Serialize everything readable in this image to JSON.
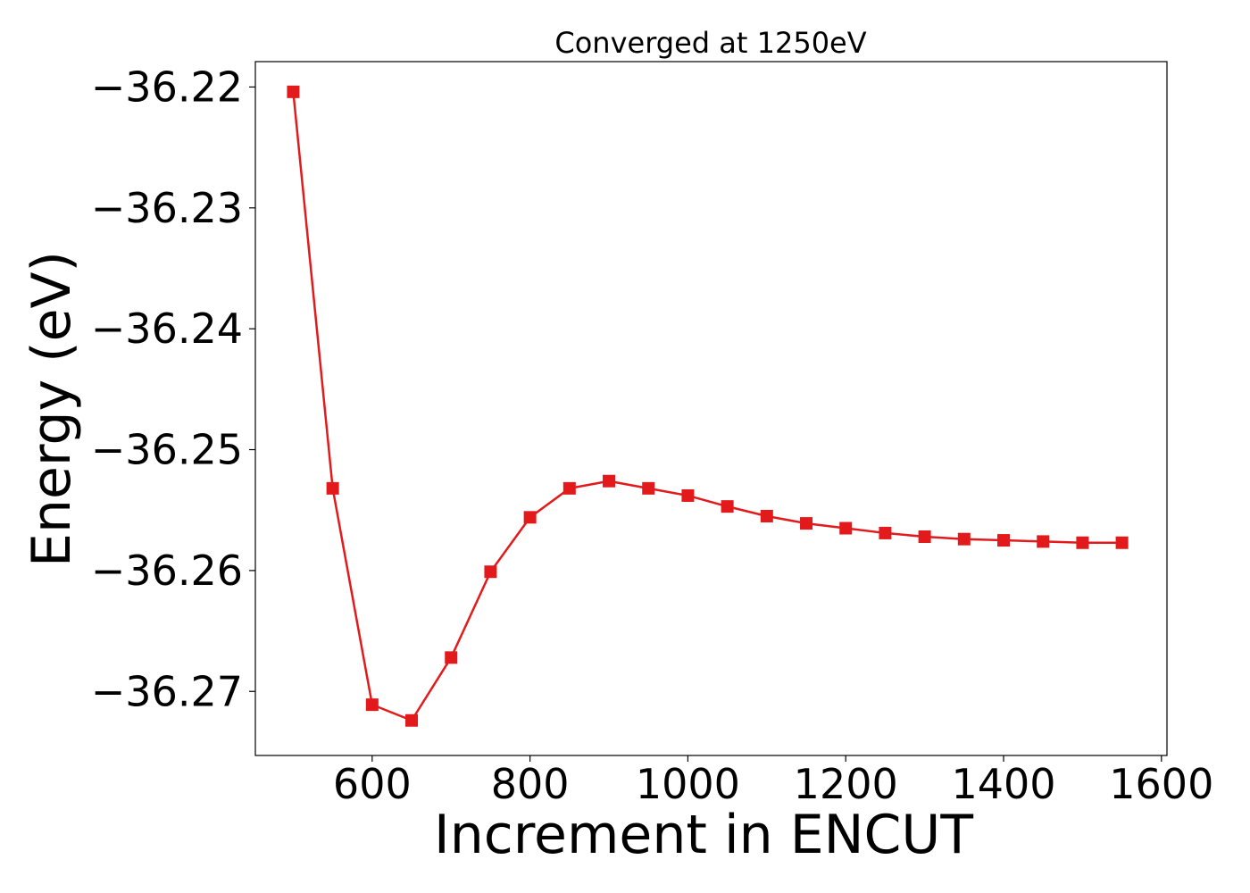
{
  "chart_data": {
    "type": "line",
    "title": "Converged at 1250eV",
    "xlabel": "Increment in ENCUT",
    "ylabel": "Energy (eV)",
    "xlim": [
      452,
      1607
    ],
    "ylim": [
      -36.2753,
      -36.2179
    ],
    "xticks": [
      600,
      800,
      1000,
      1200,
      1400,
      1600
    ],
    "xtick_labels": [
      "600",
      "800",
      "1000",
      "1200",
      "1400",
      "1600"
    ],
    "yticks": [
      -36.22,
      -36.23,
      -36.24,
      -36.25,
      -36.26,
      -36.27
    ],
    "ytick_labels": [
      "−36.22",
      "−36.23",
      "−36.24",
      "−36.25",
      "−36.26",
      "−36.27"
    ],
    "grid": false,
    "legend": false,
    "series": [
      {
        "color": "#e31a1c",
        "marker": "square",
        "x": [
          500,
          550,
          600,
          650,
          700,
          750,
          800,
          850,
          900,
          950,
          1000,
          1050,
          1100,
          1150,
          1200,
          1250,
          1300,
          1350,
          1400,
          1450,
          1500,
          1550
        ],
        "y": [
          -36.2204,
          -36.2532,
          -36.2711,
          -36.2724,
          -36.2672,
          -36.2601,
          -36.2556,
          -36.2532,
          -36.2526,
          -36.2532,
          -36.2538,
          -36.2547,
          -36.2555,
          -36.2561,
          -36.2565,
          -36.2569,
          -36.2572,
          -36.2574,
          -36.2575,
          -36.2576,
          -36.2577,
          -36.2577
        ]
      }
    ]
  }
}
